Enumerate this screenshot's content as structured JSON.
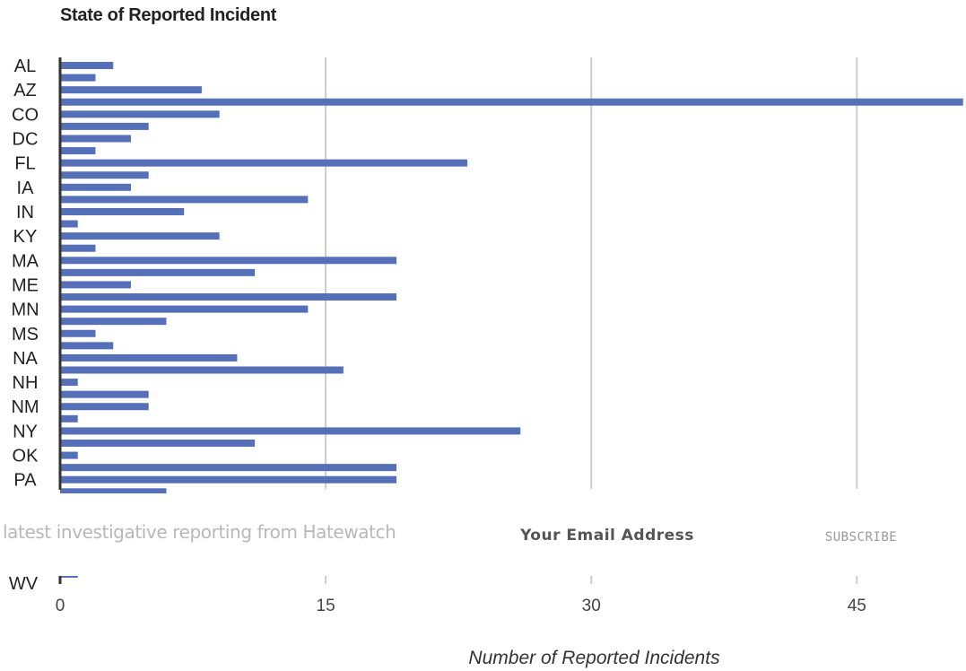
{
  "chart_data": {
    "type": "bar",
    "orientation": "horizontal",
    "title": "State of Reported Incident",
    "xlabel": "Number of Reported Incidents",
    "ylabel": "",
    "xlim": [
      0,
      51
    ],
    "xticks": [
      0,
      15,
      30,
      45
    ],
    "grid": true,
    "labeled_categories": [
      "AL",
      "AZ",
      "CO",
      "DC",
      "FL",
      "IA",
      "IN",
      "KY",
      "MA",
      "ME",
      "MN",
      "MS",
      "NA",
      "NH",
      "NM",
      "NY",
      "OK",
      "PA"
    ],
    "values": [
      3,
      2,
      8,
      51,
      9,
      5,
      4,
      2,
      23,
      5,
      4,
      14,
      7,
      1,
      9,
      2,
      19,
      11,
      4,
      19,
      14,
      6,
      2,
      3,
      10,
      16,
      1,
      5,
      5,
      1,
      26,
      11,
      1,
      19,
      19,
      6
    ],
    "partial_label": "WV",
    "partial_value": 1
  },
  "colors": {
    "bar": "#5570b8",
    "grid": "#cccccc",
    "axis": "#333333"
  },
  "overlay": {
    "text": "latest investigative reporting from Hatewatch",
    "email_placeholder": "Your Email Address",
    "subscribe_label": "SUBSCRIBE"
  }
}
